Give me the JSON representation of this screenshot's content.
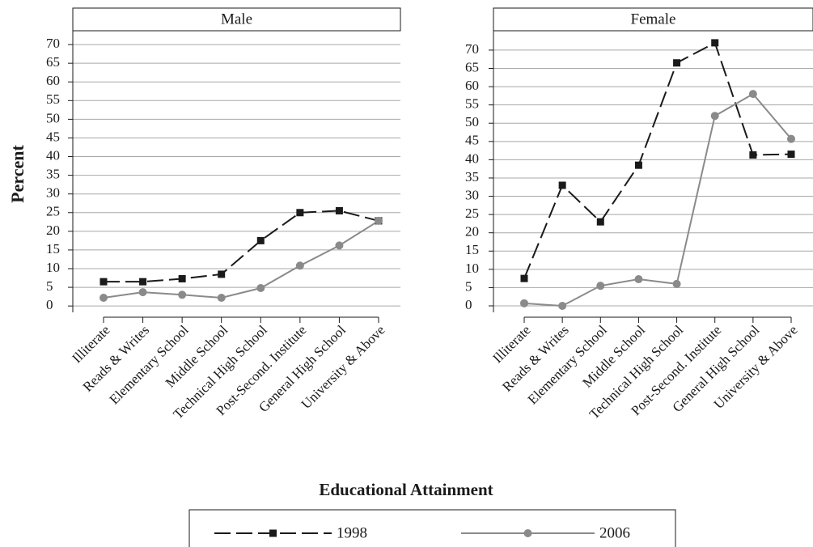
{
  "chart_data": [
    {
      "type": "line",
      "title": "Male",
      "categories": [
        "Illiterate",
        "Reads & Writes",
        "Elementary School",
        "Middle School",
        "Technical High School",
        "Post-Second. Institute",
        "General High School",
        "University & Above"
      ],
      "series": [
        {
          "name": "1998",
          "color": "#1a1a1a",
          "line_style": "dashed",
          "marker": "square",
          "values": [
            6.5,
            6.5,
            7.3,
            8.5,
            17.5,
            25,
            25.5,
            22.8
          ]
        },
        {
          "name": "2006",
          "color": "#8a8a8a",
          "line_style": "solid",
          "marker": "circle",
          "values": [
            2.2,
            3.7,
            3.0,
            2.2,
            4.8,
            10.8,
            16.2,
            22.8
          ]
        }
      ],
      "ylim": [
        -3,
        73.7
      ],
      "yticks": [
        0,
        5,
        10,
        15,
        20,
        25,
        30,
        35,
        40,
        45,
        50,
        55,
        60,
        65,
        70
      ],
      "grid": true
    },
    {
      "type": "line",
      "title": "Female",
      "categories": [
        "Illiterate",
        "Reads & Writes",
        "Elementary School",
        "Middle School",
        "Technical High School",
        "Post-Second. Institute",
        "General High School",
        "University & Above"
      ],
      "series": [
        {
          "name": "1998",
          "color": "#1a1a1a",
          "line_style": "dashed",
          "marker": "square",
          "values": [
            7.5,
            33,
            23,
            38.5,
            66.5,
            72,
            41.3,
            41.5
          ]
        },
        {
          "name": "2006",
          "color": "#8a8a8a",
          "line_style": "solid",
          "marker": "circle",
          "values": [
            0.7,
            0,
            5.5,
            7.3,
            6,
            52,
            58,
            45.7
          ]
        }
      ],
      "ylim": [
        -3.1,
        75.3
      ],
      "yticks": [
        0,
        5,
        10,
        15,
        20,
        25,
        30,
        35,
        40,
        45,
        50,
        55,
        60,
        65,
        70
      ],
      "grid": true
    }
  ],
  "axis_titles": {
    "y": "Percent",
    "x": "Educational Attainment"
  }
}
